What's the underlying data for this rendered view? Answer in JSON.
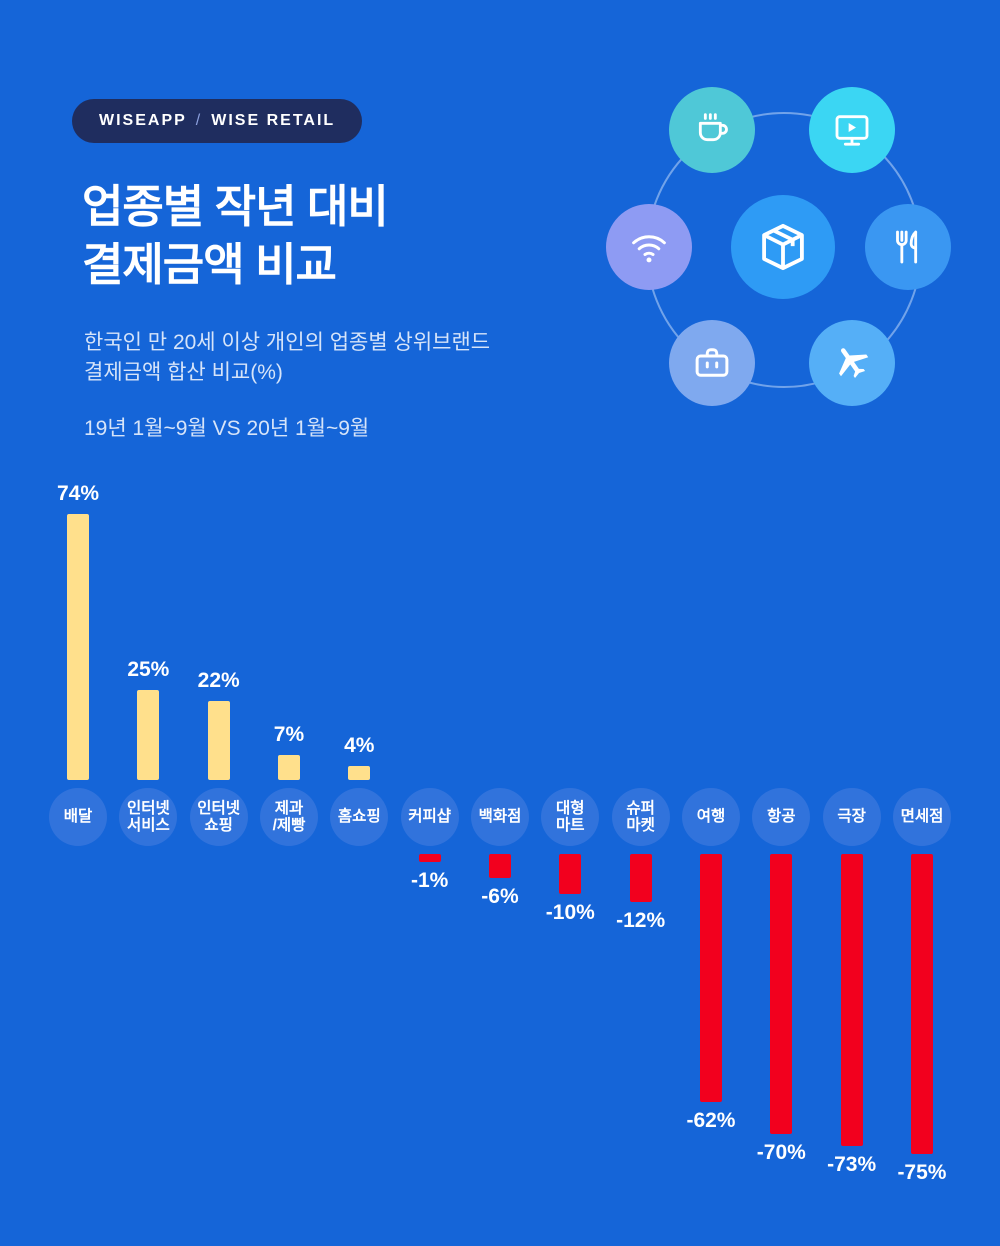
{
  "badge": {
    "brand": "WISEAPP",
    "separator": "/",
    "product": "WISE RETAIL"
  },
  "title": {
    "line1": "업종별 작년 대비",
    "line2": "결제금액 비교"
  },
  "subtitle": {
    "line1": "한국인 만 20세 이상 개인의 업종별 상위브랜드",
    "line2": "결제금액 합산 비교(%)"
  },
  "period": "19년 1월~9월 VS 20년 1월~9월",
  "icons": [
    "coffee-cup",
    "media-player",
    "wifi",
    "package-box",
    "fork-knife",
    "briefcase",
    "airplane"
  ],
  "colors": {
    "background": "#1565D8",
    "badge": "#1F2D5F",
    "positive": "#FFE08C",
    "negative": "#F2001E",
    "label_circle": "#3173DC"
  },
  "chart_data": {
    "type": "bar",
    "title": "업종별 작년 대비 결제금액 비교",
    "subtitle": "한국인 만 20세 이상 개인의 업종별 상위브랜드 결제금액 합산 비교(%)",
    "period": "19년 1월~9월 VS 20년 1월~9월",
    "unit": "%",
    "categories": [
      "배달",
      "인터넷\n서비스",
      "인터넷\n쇼핑",
      "제과\n/제빵",
      "홈쇼핑",
      "커피샵",
      "백화점",
      "대형\n마트",
      "슈퍼\n마켓",
      "여행",
      "항공",
      "극장",
      "면세점"
    ],
    "values": [
      74,
      25,
      22,
      7,
      4,
      -1,
      -6,
      -10,
      -12,
      -62,
      -70,
      -73,
      -75
    ],
    "value_labels": [
      "74%",
      "25%",
      "22%",
      "7%",
      "4%",
      "-1%",
      "-6%",
      "-10%",
      "-12%",
      "-62%",
      "-70%",
      "-73%",
      "-75%"
    ],
    "positive_color": "#FFE08C",
    "negative_color": "#F2001E",
    "grid": false,
    "legend": false,
    "ylim": [
      -80,
      80
    ]
  }
}
